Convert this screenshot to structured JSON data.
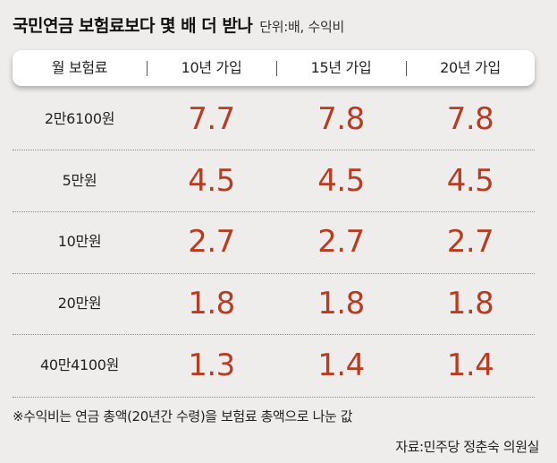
{
  "title": "국민연금 보험료보다 몇 배 더 받나",
  "unit": "단위:배, 수익비",
  "header": {
    "col0": "월 보험료",
    "col1": "10년 가입",
    "col2": "15년 가입",
    "col3": "20년 가입"
  },
  "rows": [
    {
      "label": "2만6100원",
      "v10": "7.7",
      "v15": "7.8",
      "v20": "7.8"
    },
    {
      "label": "5만원",
      "v10": "4.5",
      "v15": "4.5",
      "v20": "4.5"
    },
    {
      "label": "10만원",
      "v10": "2.7",
      "v15": "2.7",
      "v20": "2.7"
    },
    {
      "label": "20만원",
      "v10": "1.8",
      "v15": "1.8",
      "v20": "1.8"
    },
    {
      "label": "40만4100원",
      "v10": "1.3",
      "v15": "1.4",
      "v20": "1.4"
    }
  ],
  "footnote": "※수익비는 연금 총액(20년간 수령)을 보험료 총액으로 나눈 값",
  "source": "자료:민주당 정춘숙 의원실",
  "colors": {
    "value": "#b63c22",
    "background": "#efedeb"
  },
  "chart_data": {
    "type": "table",
    "title": "국민연금 보험료보다 몇 배 더 받나",
    "unit": "단위:배, 수익비",
    "columns": [
      "월 보험료",
      "10년 가입",
      "15년 가입",
      "20년 가입"
    ],
    "categories": [
      "2만6100원",
      "5만원",
      "10만원",
      "20만원",
      "40만4100원"
    ],
    "series": [
      {
        "name": "10년 가입",
        "values": [
          7.7,
          4.5,
          2.7,
          1.8,
          1.3
        ]
      },
      {
        "name": "15년 가입",
        "values": [
          7.8,
          4.5,
          2.7,
          1.8,
          1.4
        ]
      },
      {
        "name": "20년 가입",
        "values": [
          7.8,
          4.5,
          2.7,
          1.8,
          1.4
        ]
      }
    ]
  }
}
